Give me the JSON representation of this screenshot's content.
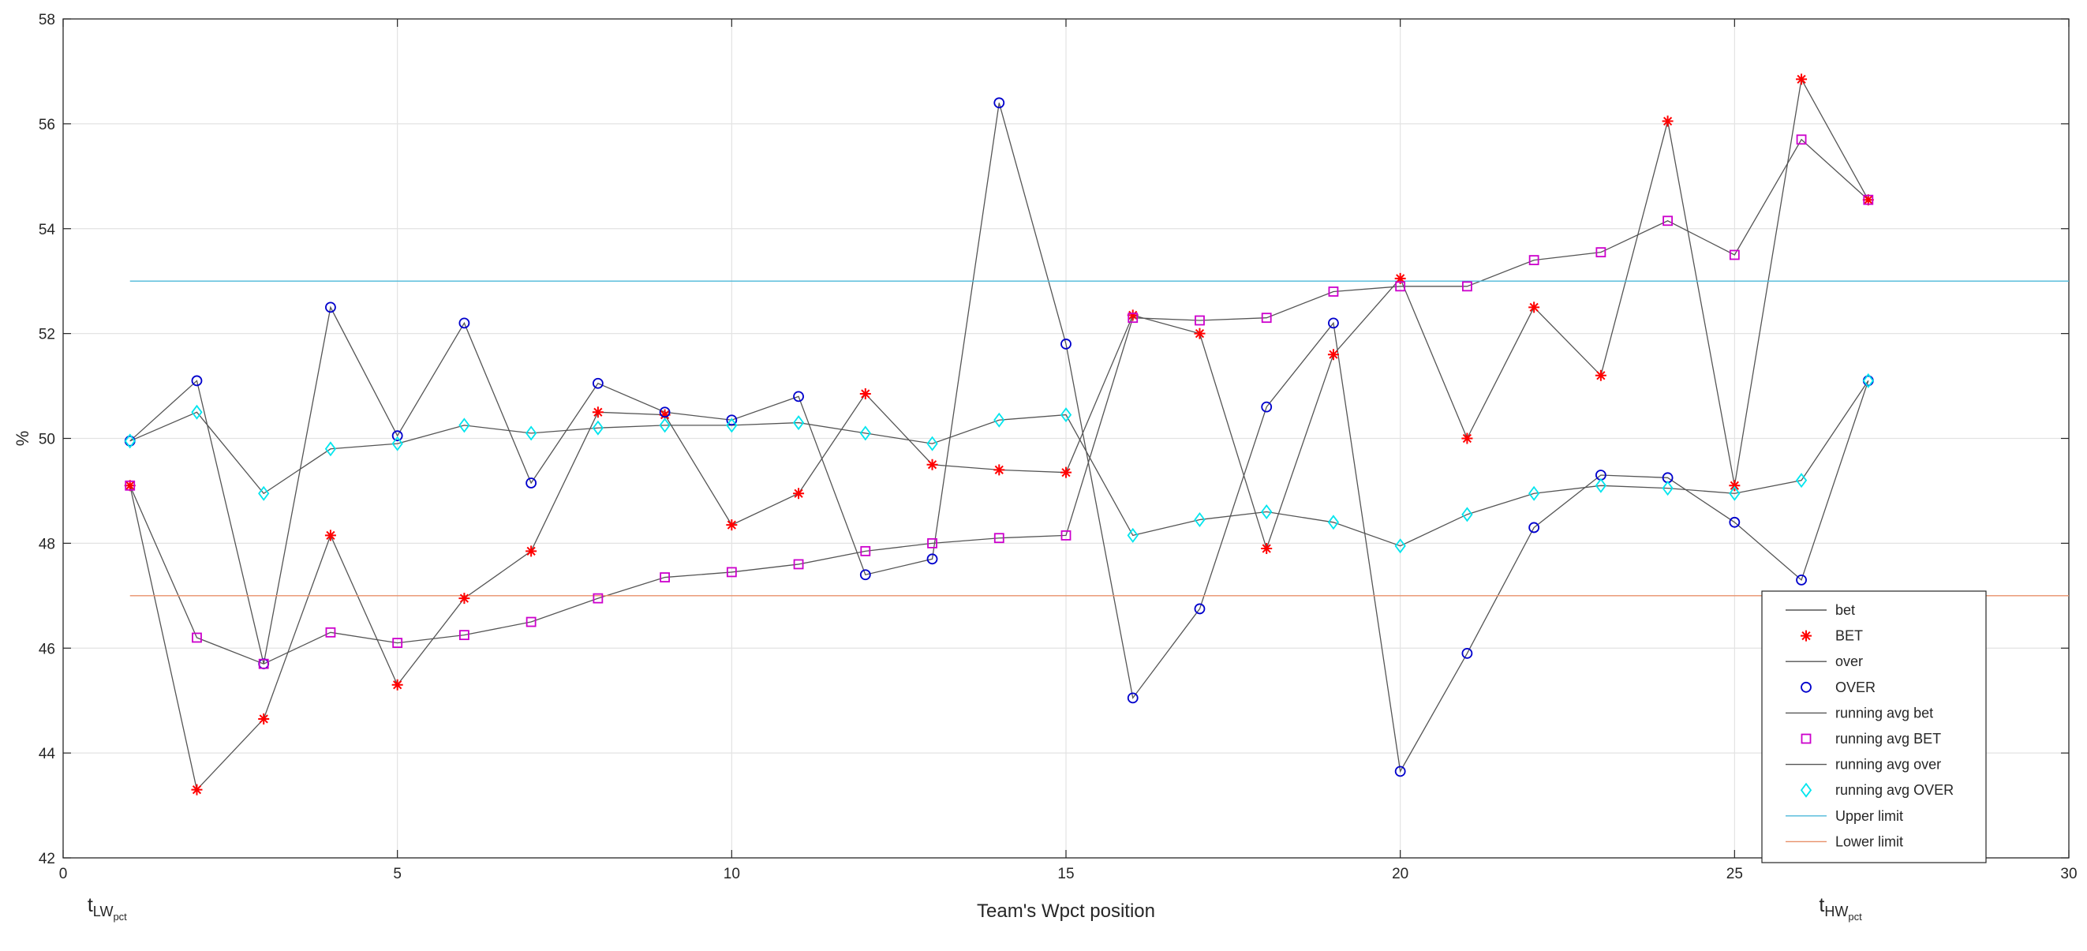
{
  "chart_data": {
    "type": "line",
    "xlabel": "Team's Wpct position",
    "ylabel": "%",
    "xlim": [
      0,
      30
    ],
    "ylim": [
      42,
      58
    ],
    "xticks": [
      0,
      5,
      10,
      15,
      20,
      25,
      30
    ],
    "yticks": [
      42,
      44,
      46,
      48,
      50,
      52,
      54,
      56,
      58
    ],
    "grid": true,
    "legend_position": "bottom-right",
    "x_annotations": [
      {
        "base": "t",
        "sub": "LW",
        "subsub": "pct",
        "x": 0.6
      },
      {
        "base": "t",
        "sub": "HW",
        "subsub": "pct",
        "x": 26.5
      }
    ],
    "x": [
      1,
      2,
      3,
      4,
      5,
      6,
      7,
      8,
      9,
      10,
      11,
      12,
      13,
      14,
      15,
      16,
      17,
      18,
      19,
      20,
      21,
      22,
      23,
      24,
      25,
      26,
      27
    ],
    "series": [
      {
        "name": "bet",
        "style": "line",
        "color": "#555555",
        "values": [
          49.1,
          43.3,
          44.65,
          48.15,
          45.3,
          46.95,
          47.85,
          50.5,
          50.45,
          48.35,
          48.95,
          50.85,
          49.5,
          49.4,
          49.35,
          52.35,
          52.0,
          47.9,
          51.6,
          53.05,
          50.0,
          52.5,
          51.2,
          56.05,
          49.1,
          56.85,
          54.55
        ]
      },
      {
        "name": "BET",
        "style": "marker",
        "marker": "star",
        "color": "#ff0000",
        "values": [
          49.1,
          43.3,
          44.65,
          48.15,
          45.3,
          46.95,
          47.85,
          50.5,
          50.45,
          48.35,
          48.95,
          50.85,
          49.5,
          49.4,
          49.35,
          52.35,
          52.0,
          47.9,
          51.6,
          53.05,
          50.0,
          52.5,
          51.2,
          56.05,
          49.1,
          56.85,
          54.55
        ]
      },
      {
        "name": "over",
        "style": "line",
        "color": "#555555",
        "values": [
          49.95,
          51.1,
          45.7,
          52.5,
          50.05,
          52.2,
          49.15,
          51.05,
          50.5,
          50.35,
          50.8,
          47.4,
          47.7,
          56.4,
          51.8,
          45.05,
          46.75,
          50.6,
          52.2,
          43.65,
          45.9,
          48.3,
          49.3,
          49.25,
          48.4,
          47.3,
          51.1
        ]
      },
      {
        "name": "OVER",
        "style": "marker",
        "marker": "circle",
        "color": "#0000cc",
        "values": [
          49.95,
          51.1,
          45.7,
          52.5,
          50.05,
          52.2,
          49.15,
          51.05,
          50.5,
          50.35,
          50.8,
          47.4,
          47.7,
          56.4,
          51.8,
          45.05,
          46.75,
          50.6,
          52.2,
          43.65,
          45.9,
          48.3,
          49.3,
          49.25,
          48.4,
          47.3,
          51.1
        ]
      },
      {
        "name": "running avg bet",
        "style": "line",
        "color": "#555555",
        "values": [
          49.1,
          46.2,
          45.7,
          46.3,
          46.1,
          46.25,
          46.5,
          46.95,
          47.35,
          47.45,
          47.6,
          47.85,
          48.0,
          48.1,
          48.15,
          52.3,
          52.25,
          52.3,
          52.8,
          52.9,
          52.9,
          53.4,
          53.55,
          54.15,
          53.5,
          55.7,
          54.55
        ]
      },
      {
        "name": "running avg BET",
        "style": "marker",
        "marker": "square",
        "color": "#cc00cc",
        "values": [
          49.1,
          46.2,
          45.7,
          46.3,
          46.1,
          46.25,
          46.5,
          46.95,
          47.35,
          47.45,
          47.6,
          47.85,
          48.0,
          48.1,
          48.15,
          52.3,
          52.25,
          52.3,
          52.8,
          52.9,
          52.9,
          53.4,
          53.55,
          54.15,
          53.5,
          55.7,
          54.55
        ]
      },
      {
        "name": "running avg over",
        "style": "line",
        "color": "#555555",
        "values": [
          49.95,
          50.5,
          48.95,
          49.8,
          49.9,
          50.25,
          50.1,
          50.2,
          50.25,
          50.25,
          50.3,
          50.1,
          49.9,
          50.35,
          50.45,
          48.15,
          48.45,
          48.6,
          48.4,
          47.95,
          48.55,
          48.95,
          49.1,
          49.05,
          48.95,
          49.2,
          51.1
        ]
      },
      {
        "name": "running avg OVER",
        "style": "marker",
        "marker": "diamond",
        "color": "#00e5ee",
        "values": [
          49.95,
          50.5,
          48.95,
          49.8,
          49.9,
          50.25,
          50.1,
          50.2,
          50.25,
          50.25,
          50.3,
          50.1,
          49.9,
          50.35,
          50.45,
          48.15,
          48.45,
          48.6,
          48.4,
          47.95,
          48.55,
          48.95,
          49.1,
          49.05,
          48.95,
          49.2,
          51.1
        ]
      },
      {
        "name": "Upper limit",
        "style": "hline",
        "color": "#4db8d9",
        "y": 53,
        "x_range": [
          1,
          30
        ]
      },
      {
        "name": "Lower limit",
        "style": "hline",
        "color": "#e8906a",
        "y": 47,
        "x_range": [
          1,
          30
        ]
      }
    ]
  }
}
